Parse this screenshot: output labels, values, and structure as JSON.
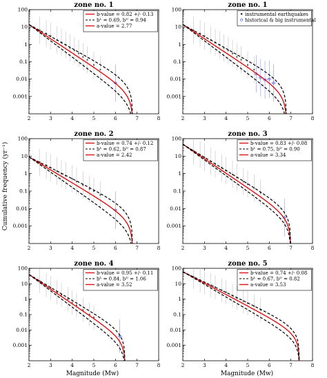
{
  "figure": {
    "xlabel": "Magnitude (Mw)",
    "ylabel": "Cumulative frequency (yr⁻¹)"
  },
  "chart_data": [
    {
      "type": "line",
      "title": "zone no. 1",
      "xlim": [
        2,
        8
      ],
      "ylim": [
        0.0001,
        100
      ],
      "yscale": "log",
      "xticks": [
        2,
        3,
        4,
        5,
        6,
        7,
        8
      ],
      "yticks": [
        {
          "v": 0.001,
          "label": "0.001"
        },
        {
          "v": 0.01,
          "label": "0.01"
        },
        {
          "v": 0.1,
          "label": "0.1"
        },
        {
          "v": 1,
          "label": "1"
        },
        {
          "v": 10,
          "label": "10"
        },
        {
          "v": 100,
          "label": "100"
        }
      ],
      "legend_position": "top-right",
      "legend": [
        "b-value = 0.82  +/- 0.13",
        "bᴸ = 0.69, bᵁ = 0.94",
        "a-value = 2.77"
      ],
      "x_start": 2,
      "y_start": 14,
      "mmax": 6.8,
      "series": [
        {
          "style": "red",
          "b": 0.82
        },
        {
          "style": "dash",
          "b": 0.69
        },
        {
          "style": "dash",
          "b": 0.94
        }
      ],
      "points": [
        {
          "x": 2.5,
          "y": 6.5
        },
        {
          "x": 2.8,
          "y": 4.2
        },
        {
          "x": 3.0,
          "y": 3.0
        },
        {
          "x": 3.3,
          "y": 1.8
        },
        {
          "x": 3.5,
          "y": 1.3
        },
        {
          "x": 3.7,
          "y": 0.95
        },
        {
          "x": 3.9,
          "y": 0.62
        },
        {
          "x": 4.1,
          "y": 0.45
        },
        {
          "x": 4.3,
          "y": 0.3
        },
        {
          "x": 4.5,
          "y": 0.19
        },
        {
          "x": 4.7,
          "y": 0.13
        },
        {
          "x": 5.0,
          "y": 0.065
        },
        {
          "x": 5.3,
          "y": 0.035
        }
      ],
      "big_points": [
        {
          "x": 6.0,
          "y": 0.006
        }
      ]
    },
    {
      "type": "line",
      "title": "zone no. 1",
      "xlim": [
        2,
        8
      ],
      "ylim": [
        0.0001,
        100
      ],
      "yscale": "log",
      "xticks": [
        2,
        3,
        4,
        5,
        6,
        7,
        8
      ],
      "yticks": [
        {
          "v": 0.001,
          "label": "0.001"
        },
        {
          "v": 0.01,
          "label": "0.01"
        },
        {
          "v": 0.1,
          "label": "0.1"
        },
        {
          "v": 1,
          "label": "1"
        },
        {
          "v": 10,
          "label": "10"
        },
        {
          "v": 100,
          "label": "100"
        }
      ],
      "legend_position": "top-right",
      "legend": [
        "instrumental earthquakes",
        "historical & big instrumental"
      ],
      "legend_style": "markers",
      "x_start": 2,
      "y_start": 14,
      "mmax": 6.8,
      "series": [
        {
          "style": "red",
          "b": 0.82
        },
        {
          "style": "dash",
          "b": 0.69
        },
        {
          "style": "dash",
          "b": 0.94
        }
      ],
      "points": [
        {
          "x": 2.5,
          "y": 6.5
        },
        {
          "x": 2.8,
          "y": 4.2
        },
        {
          "x": 3.0,
          "y": 3.0
        },
        {
          "x": 3.3,
          "y": 1.8
        },
        {
          "x": 3.5,
          "y": 1.3
        },
        {
          "x": 3.7,
          "y": 0.95
        },
        {
          "x": 3.9,
          "y": 0.62
        },
        {
          "x": 4.1,
          "y": 0.45
        },
        {
          "x": 4.3,
          "y": 0.3
        },
        {
          "x": 4.5,
          "y": 0.19
        },
        {
          "x": 4.7,
          "y": 0.13
        },
        {
          "x": 5.0,
          "y": 0.065
        },
        {
          "x": 5.3,
          "y": 0.035
        }
      ],
      "big_points": [
        {
          "x": 5.4,
          "y": 0.02
        },
        {
          "x": 5.6,
          "y": 0.012
        },
        {
          "x": 5.8,
          "y": 0.009
        },
        {
          "x": 6.0,
          "y": 0.01
        },
        {
          "x": 6.2,
          "y": 0.006
        }
      ]
    },
    {
      "type": "line",
      "title": "zone no. 2",
      "xlim": [
        2,
        8
      ],
      "ylim": [
        0.0001,
        100
      ],
      "yscale": "log",
      "xticks": [
        2,
        3,
        4,
        5,
        6,
        7,
        8
      ],
      "yticks": [
        {
          "v": 0.001,
          "label": "0.001"
        },
        {
          "v": 0.01,
          "label": "0.01"
        },
        {
          "v": 0.1,
          "label": "0.1"
        },
        {
          "v": 1,
          "label": "1"
        },
        {
          "v": 10,
          "label": "10"
        },
        {
          "v": 100,
          "label": "100"
        }
      ],
      "legend_position": "top-right",
      "legend": [
        "b-value = 0.74  +/- 0.12",
        "bᴸ = 0.62, bᵁ = 0.87",
        "a-value = 2.42"
      ],
      "x_start": 2,
      "y_start": 9,
      "mmax": 6.8,
      "series": [
        {
          "style": "red",
          "b": 0.74
        },
        {
          "style": "dash",
          "b": 0.62
        },
        {
          "style": "dash",
          "b": 0.87
        }
      ],
      "points": [
        {
          "x": 2.5,
          "y": 4.5
        },
        {
          "x": 2.8,
          "y": 3.0
        },
        {
          "x": 3.0,
          "y": 2.2
        },
        {
          "x": 3.3,
          "y": 1.4
        },
        {
          "x": 3.5,
          "y": 1.0
        },
        {
          "x": 3.7,
          "y": 0.75
        },
        {
          "x": 4.0,
          "y": 0.5
        },
        {
          "x": 4.2,
          "y": 0.35
        },
        {
          "x": 4.5,
          "y": 0.22
        },
        {
          "x": 4.8,
          "y": 0.13
        },
        {
          "x": 5.0,
          "y": 0.1
        },
        {
          "x": 5.3,
          "y": 0.06
        }
      ],
      "big_points": [
        {
          "x": 6.0,
          "y": 0.008
        }
      ]
    },
    {
      "type": "line",
      "title": "zone no. 3",
      "xlim": [
        2,
        8
      ],
      "ylim": [
        0.0001,
        100
      ],
      "yscale": "log",
      "xticks": [
        2,
        3,
        4,
        5,
        6,
        7,
        8
      ],
      "yticks": [
        {
          "v": 0.001,
          "label": "0.001"
        },
        {
          "v": 0.01,
          "label": "0.01"
        },
        {
          "v": 0.1,
          "label": "0.1"
        },
        {
          "v": 1,
          "label": "1"
        },
        {
          "v": 10,
          "label": "10"
        },
        {
          "v": 100,
          "label": "100"
        }
      ],
      "legend_position": "top-right",
      "legend": [
        "b-value = 0.83  +/- 0.08",
        "bᴸ = 0.75, bᵁ = 0.90",
        "a-value = 3.34"
      ],
      "x_start": 2,
      "y_start": 48,
      "mmax": 7.0,
      "series": [
        {
          "style": "red",
          "b": 0.83
        },
        {
          "style": "dash",
          "b": 0.75
        },
        {
          "style": "dash",
          "b": 0.9
        }
      ],
      "points": [
        {
          "x": 2.5,
          "y": 20
        },
        {
          "x": 2.8,
          "y": 12
        },
        {
          "x": 3.0,
          "y": 8.5
        },
        {
          "x": 3.3,
          "y": 5.0
        },
        {
          "x": 3.5,
          "y": 3.6
        },
        {
          "x": 3.8,
          "y": 2.2
        },
        {
          "x": 4.0,
          "y": 1.5
        },
        {
          "x": 4.3,
          "y": 0.9
        },
        {
          "x": 4.5,
          "y": 0.6
        },
        {
          "x": 4.8,
          "y": 0.35
        },
        {
          "x": 5.0,
          "y": 0.25
        },
        {
          "x": 5.3,
          "y": 0.15
        },
        {
          "x": 5.6,
          "y": 0.08
        }
      ],
      "big_points": [
        {
          "x": 6.7,
          "y": 0.003
        }
      ]
    },
    {
      "type": "line",
      "title": "zone no. 4",
      "xlim": [
        2,
        8
      ],
      "ylim": [
        0.0001,
        100
      ],
      "yscale": "log",
      "xticks": [
        2,
        3,
        4,
        5,
        6,
        7,
        8
      ],
      "yticks": [
        {
          "v": 0.001,
          "label": "0.001"
        },
        {
          "v": 0.01,
          "label": "0.01"
        },
        {
          "v": 0.1,
          "label": "0.1"
        },
        {
          "v": 1,
          "label": "1"
        },
        {
          "v": 10,
          "label": "10"
        },
        {
          "v": 100,
          "label": "100"
        }
      ],
      "legend_position": "top-right",
      "legend": [
        "b-value = 0.95  +/- 0.11",
        "bᴸ = 0.84, bᵁ = 1.06",
        "a-value = 3.52"
      ],
      "x_start": 2,
      "y_start": 40,
      "mmax": 6.45,
      "series": [
        {
          "style": "red",
          "b": 0.95
        },
        {
          "style": "dash",
          "b": 0.84
        },
        {
          "style": "dash",
          "b": 1.06
        }
      ],
      "points": [
        {
          "x": 2.5,
          "y": 15
        },
        {
          "x": 2.8,
          "y": 8
        },
        {
          "x": 3.0,
          "y": 5.5
        },
        {
          "x": 3.3,
          "y": 2.8
        },
        {
          "x": 3.5,
          "y": 1.9
        },
        {
          "x": 3.8,
          "y": 1.0
        },
        {
          "x": 4.0,
          "y": 0.6
        },
        {
          "x": 4.2,
          "y": 0.4
        },
        {
          "x": 4.5,
          "y": 0.2
        },
        {
          "x": 4.8,
          "y": 0.1
        },
        {
          "x": 5.0,
          "y": 0.065
        }
      ],
      "big_points": [
        {
          "x": 6.2,
          "y": 0.004
        }
      ]
    },
    {
      "type": "line",
      "title": "zone no. 5",
      "xlim": [
        2,
        8
      ],
      "ylim": [
        0.0001,
        100
      ],
      "yscale": "log",
      "xticks": [
        2,
        3,
        4,
        5,
        6,
        7,
        8
      ],
      "yticks": [
        {
          "v": 0.001,
          "label": "0.001"
        },
        {
          "v": 0.01,
          "label": "0.01"
        },
        {
          "v": 0.1,
          "label": "0.1"
        },
        {
          "v": 1,
          "label": "1"
        },
        {
          "v": 10,
          "label": "10"
        },
        {
          "v": 100,
          "label": "100"
        }
      ],
      "legend_position": "top-right",
      "legend": [
        "b-value = 0.74  +/- 0.08",
        "bᴸ = 0.67, bᵁ = 0.82",
        "a-value = 3.53"
      ],
      "x_start": 2,
      "y_start": 60,
      "mmax": 7.4,
      "series": [
        {
          "style": "red",
          "b": 0.74
        },
        {
          "style": "dash",
          "b": 0.67
        },
        {
          "style": "dash",
          "b": 0.82
        }
      ],
      "points": [
        {
          "x": 2.5,
          "y": 28
        },
        {
          "x": 2.8,
          "y": 17
        },
        {
          "x": 3.0,
          "y": 12
        },
        {
          "x": 3.3,
          "y": 8
        },
        {
          "x": 3.5,
          "y": 6
        },
        {
          "x": 3.8,
          "y": 3.8
        },
        {
          "x": 4.0,
          "y": 2.8
        },
        {
          "x": 4.3,
          "y": 1.7
        },
        {
          "x": 4.5,
          "y": 1.2
        },
        {
          "x": 4.8,
          "y": 0.75
        },
        {
          "x": 5.0,
          "y": 0.55
        },
        {
          "x": 5.3,
          "y": 0.35
        },
        {
          "x": 5.6,
          "y": 0.2
        }
      ],
      "big_points": []
    }
  ]
}
